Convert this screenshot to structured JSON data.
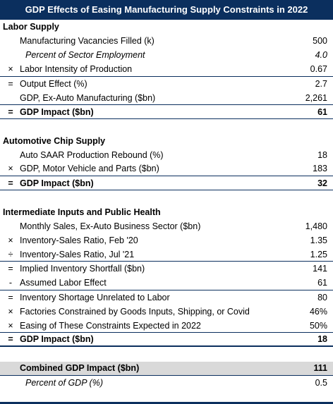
{
  "title": "GDP Effects of Easing Manufacturing Supply Constraints in 2022",
  "sections": [
    {
      "title": "Labor Supply",
      "rows": [
        {
          "op": "",
          "label": "Manufacturing Vacancies Filled (k)",
          "value": "500"
        },
        {
          "op": "",
          "label": "Percent of Sector Employment",
          "value": "4.0"
        },
        {
          "op": "×",
          "label": "Labor Intensity of Production",
          "value": "0.67"
        },
        {
          "op": "=",
          "label": "Output Effect (%)",
          "value": "2.7"
        },
        {
          "op": "",
          "label": "GDP, Ex-Auto Manufacturing ($bn)",
          "value": "2,261"
        },
        {
          "op": "=",
          "label": "GDP Impact ($bn)",
          "value": "61"
        }
      ]
    },
    {
      "title": "Automotive Chip Supply",
      "rows": [
        {
          "op": "",
          "label": "Auto SAAR Production Rebound (%)",
          "value": "18"
        },
        {
          "op": "×",
          "label": "GDP, Motor Vehicle and Parts ($bn)",
          "value": "183"
        },
        {
          "op": "=",
          "label": "GDP Impact ($bn)",
          "value": "32"
        }
      ]
    },
    {
      "title": "Intermediate Inputs and Public Health",
      "rows": [
        {
          "op": "",
          "label": "Monthly Sales, Ex-Auto Business Sector ($bn)",
          "value": "1,480"
        },
        {
          "op": "×",
          "label": "Inventory-Sales Ratio, Feb '20",
          "value": "1.35"
        },
        {
          "op": "÷",
          "label": "Inventory-Sales Ratio, Jul '21",
          "value": "1.25"
        },
        {
          "op": "=",
          "label": "Implied Inventory Shortfall ($bn)",
          "value": "141"
        },
        {
          "op": "-",
          "label": "Assumed Labor Effect",
          "value": "61"
        },
        {
          "op": "=",
          "label": "Inventory Shortage Unrelated to Labor",
          "value": "80"
        },
        {
          "op": "×",
          "label": "Factories Constrained by Goods Inputs, Shipping, or Covid",
          "value": "46%"
        },
        {
          "op": "×",
          "label": "Easing of These Constraints Expected in 2022",
          "value": "50%"
        },
        {
          "op": "=",
          "label": "GDP Impact ($bn)",
          "value": "18"
        }
      ]
    }
  ],
  "combined": {
    "label": "Combined GDP Impact ($bn)",
    "value": "111",
    "sub_label": "Percent of GDP (%)",
    "sub_value": "0.5"
  },
  "colors": {
    "header_bg": "#0b2f5e",
    "combined_bg": "#d9d9d9"
  }
}
